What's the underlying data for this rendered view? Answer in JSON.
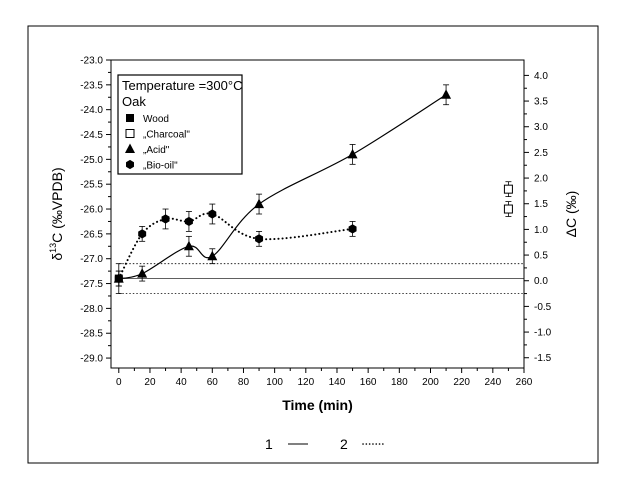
{
  "chart_data": {
    "type": "scatter",
    "title": "",
    "xlabel": "Time (min)",
    "ylabel_left_main": "δ",
    "ylabel_left_sup": "13",
    "ylabel_left_rest": "C (‰VPDB)",
    "ylabel_right": "ΔC (‰)",
    "xlim": [
      -5,
      260
    ],
    "ylim": [
      -29.2,
      -23
    ],
    "ylim_right": [
      -1.7,
      4.3
    ],
    "x_ticks": [
      0,
      20,
      40,
      60,
      80,
      100,
      120,
      140,
      160,
      180,
      200,
      220,
      240,
      260
    ],
    "y_ticks": [
      -29.0,
      -28.5,
      -28.0,
      -27.5,
      -27.0,
      -26.5,
      -26.0,
      -25.5,
      -25.0,
      -24.5,
      -24.0,
      -23.5,
      -23.0
    ],
    "y_tick_labels": [
      "-29.0",
      "-28.5",
      "-28.0",
      "-27.5",
      "-27.0",
      "-26.5",
      "-26.0",
      "-25.5",
      "-25.0",
      "-24.5",
      "-24.0",
      "-23.5",
      "-23.0"
    ],
    "y2_ticks": [
      -1.5,
      -1.0,
      -0.5,
      0.0,
      0.5,
      1.0,
      1.5,
      2.0,
      2.5,
      3.0,
      3.5,
      4.0
    ],
    "y2_tick_labels": [
      "-1.5",
      "-1.0",
      "-0.5",
      "0.0",
      "0.5",
      "1.0",
      "1.5",
      "2.0",
      "2.5",
      "3.0",
      "3.5",
      "4.0"
    ],
    "grid": false,
    "legend_position": "top-left",
    "legend_header": [
      "Temperature =300°C",
      "Oak"
    ],
    "reference_lines": [
      {
        "y": -27.4,
        "style": "solid"
      },
      {
        "y": -27.1,
        "style": "dotted"
      },
      {
        "y": -27.7,
        "style": "dotted"
      }
    ],
    "series": [
      {
        "name": "Wood",
        "marker": "square-filled",
        "line": "none",
        "points": [
          {
            "x": 0,
            "y": -27.4,
            "err": 0.3
          }
        ]
      },
      {
        "name": "„Charcoal\"",
        "marker": "square-open",
        "line": "none",
        "points": [
          {
            "x": 250,
            "y": -25.6,
            "err": 0.15
          },
          {
            "x": 250,
            "y": -26.0,
            "err": 0.15
          }
        ]
      },
      {
        "name": "„Acid\"",
        "marker": "triangle-filled",
        "line": "solid",
        "points": [
          {
            "x": 0,
            "y": -27.4,
            "err": 0.15
          },
          {
            "x": 15,
            "y": -27.3,
            "err": 0.15
          },
          {
            "x": 45,
            "y": -26.75,
            "err": 0.2
          },
          {
            "x": 60,
            "y": -26.95,
            "err": 0.15
          },
          {
            "x": 90,
            "y": -25.9,
            "err": 0.2
          },
          {
            "x": 150,
            "y": -24.9,
            "err": 0.2
          },
          {
            "x": 210,
            "y": -23.7,
            "err": 0.2
          }
        ]
      },
      {
        "name": "„Bio-oil\"",
        "marker": "hexagon-filled",
        "line": "dotted",
        "points": [
          {
            "x": 0,
            "y": -27.4,
            "err": 0.15
          },
          {
            "x": 15,
            "y": -26.5,
            "err": 0.15
          },
          {
            "x": 30,
            "y": -26.2,
            "err": 0.2
          },
          {
            "x": 45,
            "y": -26.25,
            "err": 0.2
          },
          {
            "x": 60,
            "y": -26.1,
            "err": 0.2
          },
          {
            "x": 90,
            "y": -26.6,
            "err": 0.15
          },
          {
            "x": 150,
            "y": -26.4,
            "err": 0.15
          }
        ]
      }
    ],
    "line_key": [
      {
        "label": "1",
        "style": "solid"
      },
      {
        "label": "2",
        "style": "dotted"
      }
    ]
  }
}
